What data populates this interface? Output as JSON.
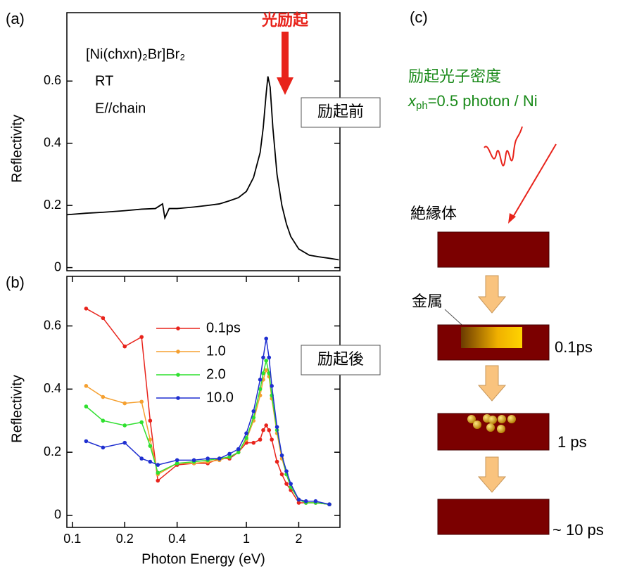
{
  "chart_data": [
    {
      "type": "line",
      "xscale": "log",
      "annotations": {
        "panel": "(a)",
        "pump": "光励起",
        "compound": "[Ni(chxn)₂Br]Br₂",
        "temperature": "RT",
        "polarization": "E//chain",
        "state": "励起前"
      },
      "ylabel": "Reflectivity",
      "x": [
        0.093,
        0.12,
        0.15,
        0.2,
        0.25,
        0.3,
        0.33,
        0.34,
        0.36,
        0.4,
        0.5,
        0.6,
        0.7,
        0.8,
        0.9,
        1.0,
        1.1,
        1.2,
        1.25,
        1.3,
        1.33,
        1.37,
        1.42,
        1.5,
        1.6,
        1.7,
        1.8,
        2.0,
        2.3,
        2.6,
        3.0,
        3.4
      ],
      "values": [
        0.17,
        0.175,
        0.178,
        0.183,
        0.188,
        0.19,
        0.205,
        0.16,
        0.19,
        0.19,
        0.195,
        0.2,
        0.205,
        0.215,
        0.225,
        0.245,
        0.29,
        0.37,
        0.45,
        0.56,
        0.615,
        0.58,
        0.45,
        0.3,
        0.2,
        0.14,
        0.1,
        0.06,
        0.04,
        0.035,
        0.03,
        0.025
      ],
      "color": "#000000",
      "xlim": [
        0.093,
        3.45
      ],
      "ylim": [
        -0.01,
        0.82
      ],
      "yticks": [
        0,
        0.2,
        0.4,
        0.6
      ]
    },
    {
      "type": "line",
      "xscale": "log",
      "annotations": {
        "panel": "(b)",
        "state": "励起後"
      },
      "xlabel": "Photon Energy (eV)",
      "ylabel": "Reflectivity",
      "x": [
        0.12,
        0.15,
        0.2,
        0.25,
        0.28,
        0.31,
        0.4,
        0.5,
        0.6,
        0.7,
        0.8,
        0.9,
        1.0,
        1.1,
        1.2,
        1.25,
        1.3,
        1.35,
        1.4,
        1.5,
        1.6,
        1.7,
        1.8,
        2.0,
        2.2,
        2.5,
        3.0
      ],
      "series": [
        {
          "name": "0.1ps",
          "color": "#e8231b",
          "values": [
            0.655,
            0.625,
            0.535,
            0.565,
            0.3,
            0.11,
            0.16,
            0.165,
            0.165,
            0.18,
            0.18,
            0.2,
            0.23,
            0.23,
            0.24,
            0.27,
            0.285,
            0.27,
            0.24,
            0.17,
            0.13,
            0.1,
            0.08,
            0.04,
            0.04,
            0.04,
            0.035
          ]
        },
        {
          "name": "1.0",
          "color": "#f5a030",
          "values": [
            0.41,
            0.375,
            0.355,
            0.36,
            0.24,
            0.13,
            0.165,
            0.165,
            0.17,
            0.175,
            0.185,
            0.2,
            0.24,
            0.3,
            0.38,
            0.43,
            0.46,
            0.44,
            0.37,
            0.26,
            0.18,
            0.13,
            0.09,
            0.05,
            0.04,
            0.04,
            0.035
          ]
        },
        {
          "name": "2.0",
          "color": "#2fe02f",
          "values": [
            0.345,
            0.3,
            0.285,
            0.295,
            0.22,
            0.135,
            0.165,
            0.17,
            0.175,
            0.18,
            0.185,
            0.2,
            0.245,
            0.31,
            0.4,
            0.45,
            0.49,
            0.45,
            0.38,
            0.27,
            0.19,
            0.13,
            0.09,
            0.05,
            0.04,
            0.04,
            0.035
          ]
        },
        {
          "name": "10.0",
          "color": "#1f2fd0",
          "values": [
            0.235,
            0.215,
            0.23,
            0.18,
            0.17,
            0.16,
            0.175,
            0.175,
            0.18,
            0.18,
            0.195,
            0.21,
            0.26,
            0.33,
            0.43,
            0.5,
            0.56,
            0.5,
            0.41,
            0.28,
            0.19,
            0.14,
            0.1,
            0.05,
            0.045,
            0.045,
            0.035
          ]
        }
      ],
      "xlim": [
        0.093,
        3.45
      ],
      "ylim": [
        -0.038,
        0.757
      ],
      "xticks": [
        0.1,
        0.2,
        0.4,
        1,
        2
      ],
      "yticks": [
        0,
        0.2,
        0.4,
        0.6
      ]
    }
  ],
  "diagram": {
    "panel": "(c)",
    "density_title": "励起光子密度",
    "density_value": [
      "x",
      "ph",
      "=0.5 photon / Ni"
    ],
    "insulator": "絶縁体",
    "metal": "金属",
    "times": [
      "0.1ps",
      "1 ps",
      "~ 10 ps"
    ]
  }
}
